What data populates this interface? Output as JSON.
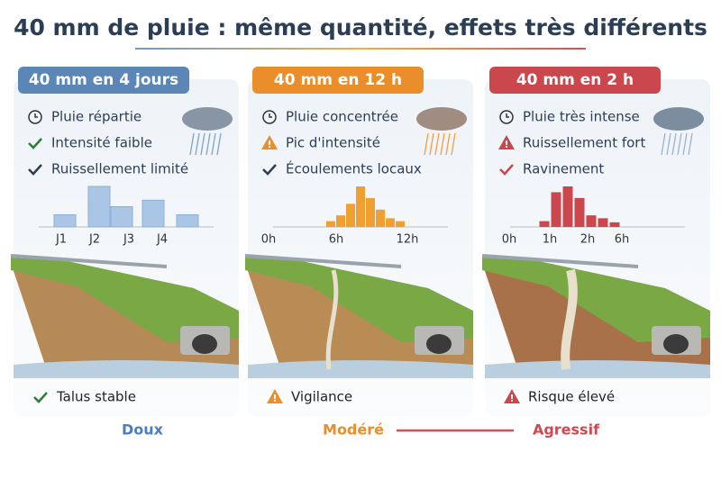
{
  "title": "40 mm de pluie : même quantité, effets très différents",
  "panels": [
    {
      "header": "40 mm en 4 jours",
      "items": [
        "Pluie répartie",
        "Intensité faible",
        "Ruissellement limité"
      ],
      "chart": {
        "values": [
          1.5,
          5,
          2.5,
          3.3,
          1.5
        ],
        "tick_labels": [
          "J1",
          "J2",
          "J3",
          "J4"
        ]
      },
      "status": "Talus stable"
    },
    {
      "header": "40 mm en 12 h",
      "items": [
        "Pluie concentrée",
        "Pic d'intensité",
        "Écoulements locaux"
      ],
      "chart": {
        "values": [
          1,
          2,
          4,
          7,
          5,
          3,
          1.5,
          1
        ],
        "tick_labels": [
          "0h",
          "6h",
          "12h"
        ]
      },
      "status": "Vigilance"
    },
    {
      "header": "40 mm en 2 h",
      "items": [
        "Pluie très intense",
        "Ruissellement fort",
        "Ravinement"
      ],
      "chart": {
        "values": [
          1,
          6,
          7,
          5,
          2,
          1.5,
          0.8
        ],
        "tick_labels": [
          "0h",
          "1h",
          "2h",
          "6h"
        ]
      },
      "status": "Risque élevé"
    }
  ],
  "scale": [
    "Doux",
    "Modéré",
    "Agressif"
  ]
}
